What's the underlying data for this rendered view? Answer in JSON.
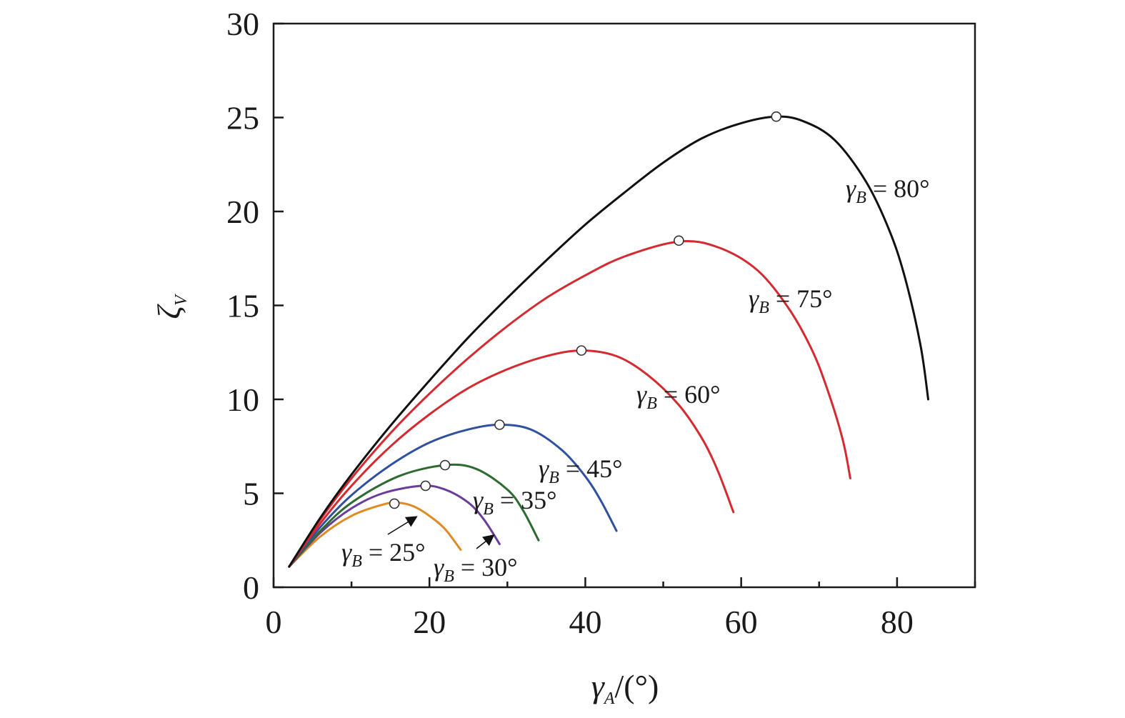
{
  "chart_data": {
    "type": "line",
    "xlabel": "γA/(°)",
    "ylabel": "ζV",
    "xlim": [
      0,
      90
    ],
    "ylim": [
      0,
      30
    ],
    "xticks": [
      0,
      20,
      40,
      60,
      80
    ],
    "yticks": [
      0,
      5,
      10,
      15,
      20,
      25,
      30
    ],
    "grid": false,
    "colors": {
      "axis": "#1a1a1a",
      "25": "#e08a24",
      "30": "#6a3d9a",
      "35": "#2e6b30",
      "45": "#3050a0",
      "60": "#d42a30",
      "75": "#d42a30",
      "80": "#111111"
    },
    "series": [
      {
        "name": "γB = 25°",
        "label": {
          "pre": "γ",
          "sub": "B",
          "post": " = 25°"
        },
        "color_key": "25",
        "x": [
          2,
          6,
          10,
          14,
          16,
          18,
          20,
          22,
          24
        ],
        "y": [
          1.1,
          2.7,
          3.8,
          4.4,
          4.5,
          4.3,
          3.8,
          3.1,
          2.0
        ],
        "peak": [
          15.5,
          4.45
        ]
      },
      {
        "name": "γB = 30°",
        "label": {
          "pre": "γ",
          "sub": "B",
          "post": " = 30°"
        },
        "color_key": "30",
        "x": [
          2,
          6,
          10,
          14,
          19,
          22,
          25,
          27,
          29
        ],
        "y": [
          1.1,
          2.9,
          4.2,
          5.0,
          5.4,
          5.2,
          4.5,
          3.6,
          2.3
        ],
        "peak": [
          19.5,
          5.4
        ]
      },
      {
        "name": "γB = 35°",
        "label": {
          "pre": "γ",
          "sub": "B",
          "post": " = 35°"
        },
        "color_key": "35",
        "x": [
          2,
          6,
          10,
          16,
          22,
          26,
          30,
          32,
          34
        ],
        "y": [
          1.1,
          3.0,
          4.5,
          5.9,
          6.5,
          6.3,
          5.2,
          4.1,
          2.5
        ],
        "peak": [
          22,
          6.5
        ]
      },
      {
        "name": "γB = 45°",
        "label": {
          "pre": "γ",
          "sub": "B",
          "post": " = 45°"
        },
        "color_key": "45",
        "x": [
          2,
          6,
          10,
          15,
          20,
          25,
          29,
          33,
          37,
          40,
          42,
          44
        ],
        "y": [
          1.1,
          3.2,
          4.9,
          6.5,
          7.7,
          8.4,
          8.65,
          8.4,
          7.3,
          5.9,
          4.6,
          3.0
        ],
        "peak": [
          29,
          8.65
        ]
      },
      {
        "name": "γB = 60°",
        "label": {
          "pre": "γ",
          "sub": "B",
          "post": " = 60°"
        },
        "color_key": "60",
        "x": [
          2,
          6,
          10,
          15,
          20,
          25,
          30,
          35,
          39.5,
          44,
          48,
          52,
          55,
          57,
          59
        ],
        "y": [
          1.1,
          3.4,
          5.4,
          7.5,
          9.2,
          10.6,
          11.6,
          12.3,
          12.6,
          12.3,
          11.3,
          9.7,
          7.9,
          6.2,
          4.0
        ],
        "peak": [
          39.5,
          12.6
        ]
      },
      {
        "name": "γB = 75°",
        "label": {
          "pre": "γ",
          "sub": "B",
          "post": " = 75°"
        },
        "color_key": "75",
        "x": [
          2,
          6,
          10,
          15,
          20,
          25,
          30,
          35,
          40,
          45,
          52,
          57,
          62,
          66,
          69,
          71,
          73,
          74
        ],
        "y": [
          1.1,
          3.6,
          5.8,
          8.2,
          10.3,
          12.2,
          13.9,
          15.4,
          16.6,
          17.6,
          18.4,
          18.1,
          16.9,
          14.9,
          12.7,
          10.6,
          7.9,
          5.8
        ],
        "peak": [
          52,
          18.45
        ]
      },
      {
        "name": "γB = 80°",
        "label": {
          "pre": "γ",
          "sub": "B",
          "post": " = 80°"
        },
        "color_key": "80",
        "x": [
          2,
          6,
          10,
          15,
          20,
          25,
          30,
          35,
          40,
          45,
          50,
          55,
          60,
          64.5,
          68,
          72,
          76,
          79,
          81,
          83,
          84
        ],
        "y": [
          1.1,
          3.7,
          6.0,
          8.6,
          11.0,
          13.3,
          15.4,
          17.4,
          19.3,
          21.0,
          22.6,
          23.9,
          24.7,
          25.05,
          24.8,
          23.8,
          21.6,
          19.0,
          16.5,
          12.9,
          10.0
        ],
        "peak": [
          64.5,
          25.05
        ]
      }
    ]
  }
}
